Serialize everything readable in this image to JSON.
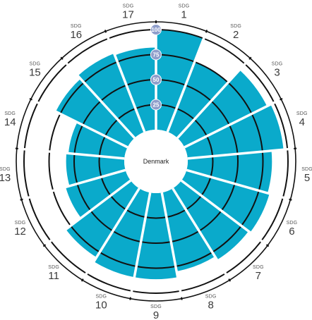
{
  "chart_data": {
    "type": "bar",
    "subtype": "polar-bar",
    "center_label": "Denmark",
    "categories": [
      "1",
      "2",
      "3",
      "4",
      "5",
      "6",
      "7",
      "8",
      "9",
      "10",
      "11",
      "12",
      "13",
      "14",
      "15",
      "16",
      "17"
    ],
    "category_tag": "SDG",
    "values": [
      100,
      75,
      92,
      96,
      84,
      86,
      84,
      80,
      86,
      86,
      81,
      62,
      58,
      56,
      80,
      84,
      82
    ],
    "rlim": [
      0,
      100
    ],
    "ring_ticks": [
      25,
      50,
      75,
      100
    ],
    "ring_tick_labels": [
      "25",
      "50",
      "75",
      "100"
    ],
    "grid": true
  },
  "colors": {
    "bar": "#0aaacb",
    "ring": "#111111",
    "divider": "#ffffff",
    "ring_label_bg": "#8f9ecb",
    "outer_circle": "#111111"
  }
}
